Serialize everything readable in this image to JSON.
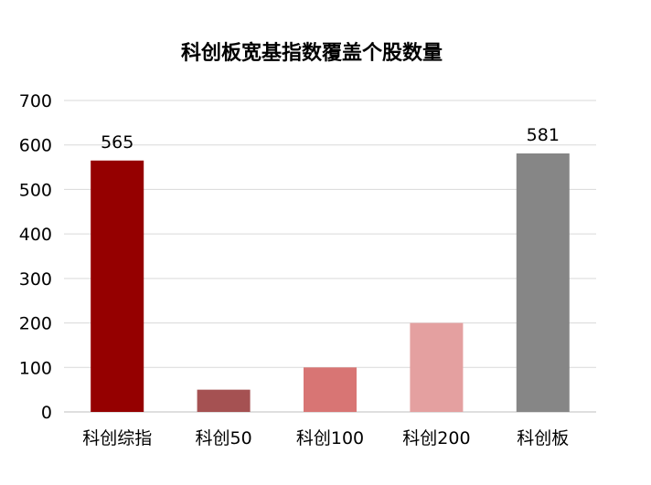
{
  "chart_data": {
    "type": "bar",
    "title": "科创板宽基指数覆盖个股数量",
    "xlabel": "",
    "ylabel": "",
    "ylim": [
      0,
      700
    ],
    "yticks": [
      0,
      100,
      200,
      300,
      400,
      500,
      600,
      700
    ],
    "grid": true,
    "legend": "none",
    "categories": [
      "科创综指",
      "科创50",
      "科创100",
      "科创200",
      "科创板"
    ],
    "values": [
      565,
      50,
      100,
      200,
      581
    ],
    "data_labels": [
      "565",
      "",
      "",
      "",
      "581"
    ],
    "colors": [
      "#950000",
      "#a55152",
      "#d87574",
      "#e4a0a0",
      "#868686"
    ]
  }
}
